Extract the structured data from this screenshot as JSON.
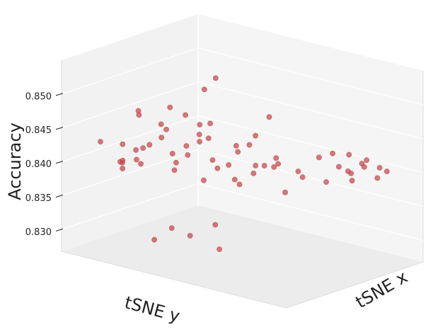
{
  "chart_data": {
    "type": "scatter3d",
    "xlabel": "tSNE x",
    "ylabel": "tSNE y",
    "zlabel": "Accuracy",
    "color": "#c44e52",
    "x": [
      -30,
      -28,
      -25,
      -20,
      -18,
      -15,
      -10,
      -8,
      -5,
      -35,
      -32,
      -25,
      -20,
      -15,
      -10,
      -5,
      0,
      5,
      -30,
      -22,
      -15,
      -8,
      0,
      5,
      -35,
      -25,
      -18,
      -10,
      -2,
      8,
      -38,
      -12,
      2,
      -40,
      -28,
      -20,
      -12,
      -5,
      -8,
      -3,
      -20,
      -30,
      -35,
      -22,
      -40,
      10,
      12,
      10,
      15,
      12,
      18,
      22,
      25,
      28,
      30,
      33,
      35,
      38,
      20,
      26,
      40,
      32,
      -30,
      -22,
      -25,
      -15,
      0,
      -40,
      -18
    ],
    "y": [
      -35,
      -30,
      -38,
      -32,
      -25,
      -36,
      -30,
      -20,
      -28,
      -20,
      -10,
      -15,
      -5,
      -10,
      0,
      -8,
      -15,
      -5,
      5,
      10,
      15,
      8,
      5,
      12,
      20,
      25,
      30,
      22,
      28,
      20,
      -40,
      -40,
      -35,
      0,
      -2,
      18,
      -18,
      15,
      -12,
      -10,
      -20,
      -28,
      -32,
      -40,
      -30,
      -25,
      -10,
      8,
      25,
      30,
      32,
      35,
      38,
      30,
      36,
      40,
      34,
      38,
      28,
      33,
      40,
      28,
      -5,
      -18,
      5,
      -30,
      -12,
      10,
      -35
    ],
    "z": [
      0.8425,
      0.8405,
      0.8395,
      0.8415,
      0.8435,
      0.8385,
      0.8445,
      0.842,
      0.84,
      0.844,
      0.842,
      0.84,
      0.839,
      0.845,
      0.841,
      0.8395,
      0.843,
      0.8415,
      0.8435,
      0.8405,
      0.8425,
      0.8445,
      0.8395,
      0.842,
      0.8415,
      0.844,
      0.84,
      0.843,
      0.841,
      0.8405,
      0.843,
      0.84,
      0.8425,
      0.8445,
      0.8455,
      0.8475,
      0.847,
      0.849,
      0.851,
      0.8525,
      0.8485,
      0.848,
      0.8395,
      0.8388,
      0.841,
      0.8435,
      0.8415,
      0.84,
      0.8425,
      0.8395,
      0.8415,
      0.8405,
      0.842,
      0.84,
      0.841,
      0.8395,
      0.8415,
      0.8405,
      0.843,
      0.839,
      0.84,
      0.842,
      0.8315,
      0.831,
      0.83,
      0.8278,
      0.8305,
      0.85,
      0.846
    ],
    "zlim": [
      0.8268,
      0.855
    ],
    "zticks": [
      {
        "value": 0.83,
        "label": "0.830"
      },
      {
        "value": 0.835,
        "label": "0.835"
      },
      {
        "value": 0.84,
        "label": "0.840"
      },
      {
        "value": 0.845,
        "label": "0.845"
      },
      {
        "value": 0.85,
        "label": "0.850"
      }
    ],
    "grid": true
  }
}
